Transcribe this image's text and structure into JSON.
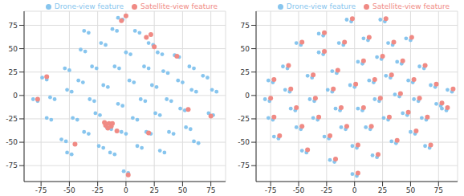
{
  "chart_data": [
    {
      "type": "scatter",
      "xlim": [
        -90,
        88
      ],
      "ylim": [
        -92,
        90
      ],
      "xticks": [
        -75,
        -50,
        -25,
        0,
        25,
        50,
        75
      ],
      "yticks": [
        -75,
        -50,
        -25,
        0,
        25,
        50,
        75
      ],
      "grid": true,
      "legend": "upper right",
      "series": [
        {
          "name": "Drone-view feature",
          "color": "#87c5ee",
          "marker": "circle",
          "points": [
            [
              -82,
              -4
            ],
            [
              -78,
              -6
            ],
            [
              -74,
              19
            ],
            [
              -70,
              17
            ],
            [
              -67,
              -2
            ],
            [
              -63,
              -4
            ],
            [
              -70,
              -24
            ],
            [
              -66,
              -26
            ],
            [
              -57,
              -47
            ],
            [
              -53,
              -49
            ],
            [
              -52,
              -61
            ],
            [
              -48,
              -63
            ],
            [
              -54,
              29
            ],
            [
              -50,
              27
            ],
            [
              -52,
              6
            ],
            [
              -48,
              4
            ],
            [
              -47,
              -24
            ],
            [
              -43,
              -26
            ],
            [
              -42,
              16
            ],
            [
              -38,
              14
            ],
            [
              -40,
              49
            ],
            [
              -36,
              47
            ],
            [
              -37,
              69
            ],
            [
              -33,
              67
            ],
            [
              -37,
              -39
            ],
            [
              -33,
              -41
            ],
            [
              -32,
              -4
            ],
            [
              -28,
              -6
            ],
            [
              -30,
              31
            ],
            [
              -26,
              29
            ],
            [
              -27,
              -19
            ],
            [
              -23,
              -21
            ],
            [
              -24,
              -54
            ],
            [
              -20,
              -56
            ],
            [
              -22,
              56
            ],
            [
              -18,
              54
            ],
            [
              -20,
              11
            ],
            [
              -16,
              9
            ],
            [
              -17,
              -34
            ],
            [
              -13,
              -36
            ],
            [
              -14,
              -61
            ],
            [
              -10,
              -63
            ],
            [
              -12,
              71
            ],
            [
              -8,
              69
            ],
            [
              -10,
              31
            ],
            [
              -6,
              29
            ],
            [
              -7,
              -9
            ],
            [
              -3,
              -11
            ],
            [
              -4,
              -39
            ],
            [
              0,
              -41
            ],
            [
              -2,
              -81
            ],
            [
              2,
              -83
            ],
            [
              0,
              46
            ],
            [
              4,
              44
            ],
            [
              3,
              16
            ],
            [
              7,
              14
            ],
            [
              6,
              -24
            ],
            [
              10,
              -26
            ],
            [
              8,
              69
            ],
            [
              12,
              67
            ],
            [
              10,
              -54
            ],
            [
              14,
              -56
            ],
            [
              13,
              -4
            ],
            [
              17,
              -6
            ],
            [
              16,
              31
            ],
            [
              20,
              29
            ],
            [
              18,
              -39
            ],
            [
              22,
              -41
            ],
            [
              20,
              56
            ],
            [
              24,
              54
            ],
            [
              23,
              11
            ],
            [
              27,
              9
            ],
            [
              26,
              -19
            ],
            [
              30,
              -21
            ],
            [
              28,
              46
            ],
            [
              32,
              44
            ],
            [
              30,
              -59
            ],
            [
              34,
              -61
            ],
            [
              33,
              26
            ],
            [
              37,
              24
            ],
            [
              36,
              -4
            ],
            [
              40,
              -6
            ],
            [
              38,
              -39
            ],
            [
              42,
              -41
            ],
            [
              43,
              43
            ],
            [
              47,
              41
            ],
            [
              46,
              16
            ],
            [
              50,
              14
            ],
            [
              48,
              -14
            ],
            [
              52,
              -16
            ],
            [
              53,
              -34
            ],
            [
              57,
              -36
            ],
            [
              56,
              31
            ],
            [
              60,
              29
            ],
            [
              58,
              6
            ],
            [
              62,
              4
            ],
            [
              60,
              -49
            ],
            [
              64,
              -51
            ],
            [
              68,
              21
            ],
            [
              72,
              19
            ],
            [
              73,
              -19
            ],
            [
              77,
              -21
            ],
            [
              76,
              6
            ],
            [
              80,
              4
            ],
            [
              -7,
              83
            ],
            [
              -3,
              81
            ]
          ]
        },
        {
          "name": "Satellite-view feature",
          "color": "#f08a84",
          "marker": "circle",
          "points": [
            [
              -78,
              -4
            ],
            [
              -70,
              20
            ],
            [
              -45,
              -52
            ],
            [
              -18,
              -32
            ],
            [
              -15,
              -30
            ],
            [
              -13,
              -33
            ],
            [
              -16,
              -35
            ],
            [
              -12,
              -30
            ],
            [
              -19,
              -29
            ],
            [
              -8,
              -38
            ],
            [
              0,
              85
            ],
            [
              -4,
              80
            ],
            [
              2,
              -85
            ],
            [
              18,
              62
            ],
            [
              22,
              65
            ],
            [
              25,
              52
            ],
            [
              45,
              42
            ],
            [
              55,
              -15
            ],
            [
              75,
              -22
            ],
            [
              20,
              -40
            ]
          ]
        }
      ]
    },
    {
      "type": "scatter",
      "xlim": [
        -88,
        92
      ],
      "ylim": [
        -92,
        90
      ],
      "xticks": [
        -75,
        -50,
        -25,
        0,
        25,
        50,
        75
      ],
      "yticks": [
        -75,
        -50,
        -25,
        0,
        25,
        50,
        75
      ],
      "grid": true,
      "legend": "upper right",
      "series": [
        {
          "name": "Drone-view feature",
          "color": "#87c5ee",
          "marker": "circle",
          "points": [
            [
              -77,
              16
            ],
            [
              -73,
              14
            ],
            [
              -80,
              -4
            ],
            [
              -76,
              -6
            ],
            [
              -77,
              -24
            ],
            [
              -73,
              -26
            ],
            [
              -72,
              -44
            ],
            [
              -68,
              -46
            ],
            [
              -64,
              31
            ],
            [
              -60,
              29
            ],
            [
              -62,
              6
            ],
            [
              -58,
              4
            ],
            [
              -57,
              -14
            ],
            [
              -53,
              -16
            ],
            [
              -52,
              -34
            ],
            [
              -48,
              -36
            ],
            [
              -52,
              56
            ],
            [
              -48,
              54
            ],
            [
              -47,
              -59
            ],
            [
              -43,
              -61
            ],
            [
              -42,
              21
            ],
            [
              -38,
              19
            ],
            [
              -40,
              -4
            ],
            [
              -36,
              -6
            ],
            [
              -37,
              -24
            ],
            [
              -33,
              -26
            ],
            [
              -32,
              46
            ],
            [
              -28,
              44
            ],
            [
              -32,
              66
            ],
            [
              -28,
              64
            ],
            [
              -27,
              -44
            ],
            [
              -23,
              -46
            ],
            [
              -24,
              6
            ],
            [
              -20,
              4
            ],
            [
              -22,
              -69
            ],
            [
              -18,
              -71
            ],
            [
              -20,
              26
            ],
            [
              -16,
              24
            ],
            [
              -17,
              -14
            ],
            [
              -13,
              -16
            ],
            [
              -14,
              56
            ],
            [
              -10,
              54
            ],
            [
              -12,
              -34
            ],
            [
              -8,
              -36
            ],
            [
              -7,
              81
            ],
            [
              -3,
              79
            ],
            [
              -4,
              11
            ],
            [
              0,
              9
            ],
            [
              -2,
              -54
            ],
            [
              2,
              -56
            ],
            [
              -2,
              -84
            ],
            [
              2,
              -86
            ],
            [
              3,
              36
            ],
            [
              7,
              34
            ],
            [
              3,
              -14
            ],
            [
              7,
              -16
            ],
            [
              8,
              61
            ],
            [
              12,
              59
            ],
            [
              10,
              -34
            ],
            [
              14,
              -36
            ],
            [
              13,
              16
            ],
            [
              17,
              14
            ],
            [
              16,
              -64
            ],
            [
              20,
              -66
            ],
            [
              18,
              -4
            ],
            [
              22,
              -6
            ],
            [
              20,
              41
            ],
            [
              24,
              39
            ],
            [
              23,
              81
            ],
            [
              27,
              79
            ],
            [
              26,
              -24
            ],
            [
              30,
              -26
            ],
            [
              28,
              21
            ],
            [
              32,
              19
            ],
            [
              30,
              56
            ],
            [
              34,
              54
            ],
            [
              33,
              -49
            ],
            [
              37,
              -51
            ],
            [
              36,
              1
            ],
            [
              40,
              -1
            ],
            [
              38,
              36
            ],
            [
              42,
              34
            ],
            [
              43,
              -19
            ],
            [
              47,
              -21
            ],
            [
              46,
              61
            ],
            [
              50,
              59
            ],
            [
              48,
              16
            ],
            [
              52,
              14
            ],
            [
              50,
              -39
            ],
            [
              54,
              -41
            ],
            [
              53,
              -4
            ],
            [
              57,
              -6
            ],
            [
              58,
              31
            ],
            [
              62,
              29
            ],
            [
              60,
              -24
            ],
            [
              64,
              -26
            ],
            [
              63,
              -54
            ],
            [
              67,
              -56
            ],
            [
              68,
              11
            ],
            [
              72,
              9
            ],
            [
              73,
              -9
            ],
            [
              77,
              -11
            ],
            [
              78,
              -14
            ],
            [
              82,
              -16
            ],
            [
              83,
              6
            ],
            [
              87,
              4
            ]
          ]
        },
        {
          "name": "Satellite-view feature",
          "color": "#f08a84",
          "marker": "circle",
          "points": [
            [
              -72,
              17
            ],
            [
              -75,
              -3
            ],
            [
              -72,
              -23
            ],
            [
              -67,
              -43
            ],
            [
              -59,
              32
            ],
            [
              -57,
              7
            ],
            [
              -52,
              -13
            ],
            [
              -47,
              -33
            ],
            [
              -47,
              57
            ],
            [
              -42,
              -58
            ],
            [
              -37,
              22
            ],
            [
              -35,
              -3
            ],
            [
              -32,
              -23
            ],
            [
              -27,
              47
            ],
            [
              -27,
              67
            ],
            [
              -22,
              -43
            ],
            [
              -19,
              7
            ],
            [
              -17,
              -68
            ],
            [
              -15,
              27
            ],
            [
              -12,
              -13
            ],
            [
              -9,
              57
            ],
            [
              -7,
              -33
            ],
            [
              -2,
              82
            ],
            [
              1,
              12
            ],
            [
              3,
              -53
            ],
            [
              3,
              -83
            ],
            [
              8,
              37
            ],
            [
              8,
              -13
            ],
            [
              13,
              62
            ],
            [
              15,
              -33
            ],
            [
              18,
              17
            ],
            [
              21,
              -63
            ],
            [
              23,
              -3
            ],
            [
              25,
              42
            ],
            [
              28,
              82
            ],
            [
              31,
              -23
            ],
            [
              33,
              22
            ],
            [
              35,
              57
            ],
            [
              38,
              -48
            ],
            [
              41,
              2
            ],
            [
              43,
              37
            ],
            [
              48,
              -18
            ],
            [
              51,
              62
            ],
            [
              53,
              17
            ],
            [
              55,
              -38
            ],
            [
              58,
              -3
            ],
            [
              63,
              32
            ],
            [
              65,
              -23
            ],
            [
              68,
              -53
            ],
            [
              73,
              12
            ],
            [
              78,
              -8
            ],
            [
              83,
              -13
            ],
            [
              88,
              7
            ]
          ]
        }
      ]
    }
  ]
}
